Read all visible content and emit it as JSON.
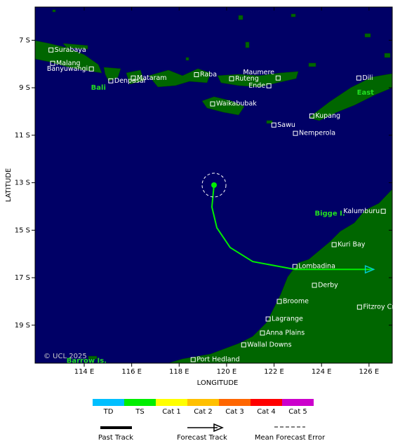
{
  "map": {
    "xlim": [
      111.93,
      126.98
    ],
    "ylim": [
      -20.6,
      -5.6
    ],
    "xticks": [
      {
        "value": 114,
        "label": "114 E"
      },
      {
        "value": 116,
        "label": "116 E"
      },
      {
        "value": 118,
        "label": "118 E"
      },
      {
        "value": 120,
        "label": "120 E"
      },
      {
        "value": 122,
        "label": "122 E"
      },
      {
        "value": 124,
        "label": "124 E"
      },
      {
        "value": 126,
        "label": "126 E"
      }
    ],
    "yticks": [
      {
        "value": -7,
        "label": "7 S"
      },
      {
        "value": -9,
        "label": "9 S"
      },
      {
        "value": -11,
        "label": "11 S"
      },
      {
        "value": -13,
        "label": "13 S"
      },
      {
        "value": -15,
        "label": "15 S"
      },
      {
        "value": -17,
        "label": "17 S"
      },
      {
        "value": -19,
        "label": "19 S"
      }
    ],
    "xlabel": "LONGITUDE",
    "ylabel": "LATITUDE",
    "ocean_color": "#000066",
    "land_color": "#006600",
    "places": [
      {
        "name": "Surabaya",
        "lon": 112.6,
        "lat": -7.41
      },
      {
        "name": "Malang",
        "lon": 112.67,
        "lat": -7.97
      },
      {
        "name": "Banyuwangi",
        "lon": 114.3,
        "lat": -8.21
      },
      {
        "name": "Denpasar",
        "lon": 115.12,
        "lat": -8.71
      },
      {
        "name": "Mataram",
        "lon": 116.07,
        "lat": -8.59
      },
      {
        "name": "Raba",
        "lon": 118.73,
        "lat": -8.45
      },
      {
        "name": "Ruteng",
        "lon": 120.21,
        "lat": -8.62
      },
      {
        "name": "Maumere",
        "lon": 122.17,
        "lat": -8.59
      },
      {
        "name": "Ende",
        "lon": 121.78,
        "lat": -8.92
      },
      {
        "name": "Dili",
        "lon": 125.57,
        "lat": -8.59
      },
      {
        "name": "Waikabubak",
        "lon": 119.41,
        "lat": -9.68
      },
      {
        "name": "Kupang",
        "lon": 123.59,
        "lat": -10.19
      },
      {
        "name": "Sawu",
        "lon": 121.99,
        "lat": -10.57
      },
      {
        "name": "Nemperola",
        "lon": 122.9,
        "lat": -10.92
      },
      {
        "name": "Kalumburu",
        "lon": 126.6,
        "lat": -14.2
      },
      {
        "name": "Kuri Bay",
        "lon": 124.53,
        "lat": -15.61
      },
      {
        "name": "Lombadina",
        "lon": 122.88,
        "lat": -16.53
      },
      {
        "name": "Derby",
        "lon": 123.7,
        "lat": -17.32
      },
      {
        "name": "Broome",
        "lon": 122.22,
        "lat": -18.0
      },
      {
        "name": "Fitzroy Crossing",
        "lon": 125.6,
        "lat": -18.24
      },
      {
        "name": "Lagrange",
        "lon": 121.75,
        "lat": -18.74
      },
      {
        "name": "Anna Plains",
        "lon": 121.51,
        "lat": -19.33
      },
      {
        "name": "Wallal Downs",
        "lon": 120.72,
        "lat": -19.83
      },
      {
        "name": "Port Hedland",
        "lon": 118.59,
        "lat": -20.45
      }
    ],
    "regions": [
      {
        "name": "Bali",
        "lon": 114.6,
        "lat": -9.0
      },
      {
        "name": "East",
        "lon": 125.85,
        "lat": -9.2
      },
      {
        "name": "Bigge I.",
        "lon": 124.35,
        "lat": -14.3
      },
      {
        "name": "Barrow Is.",
        "lon": 114.1,
        "lat": -20.5
      }
    ],
    "copyright": "© UCL 2025",
    "track": {
      "color": "#00ee00",
      "arrow_color": "#00cccc",
      "lon": [
        119.47,
        119.38,
        119.59,
        120.15,
        121.1,
        122.88,
        126.2
      ],
      "lat": [
        -13.1,
        -14.02,
        -14.9,
        -15.73,
        -16.32,
        -16.65,
        -16.65
      ]
    }
  },
  "legend": {
    "categories": [
      {
        "name": "TD",
        "color": "#00bfff"
      },
      {
        "name": "TS",
        "color": "#00ee00"
      },
      {
        "name": "Cat 1",
        "color": "#ffff00"
      },
      {
        "name": "Cat 2",
        "color": "#ffc000"
      },
      {
        "name": "Cat 3",
        "color": "#ff6600"
      },
      {
        "name": "Cat 4",
        "color": "#ff0000"
      },
      {
        "name": "Cat 5",
        "color": "#cc00cc"
      }
    ],
    "lines": [
      "Past Track",
      "Forecast Track",
      "Mean Forecast Error"
    ]
  }
}
